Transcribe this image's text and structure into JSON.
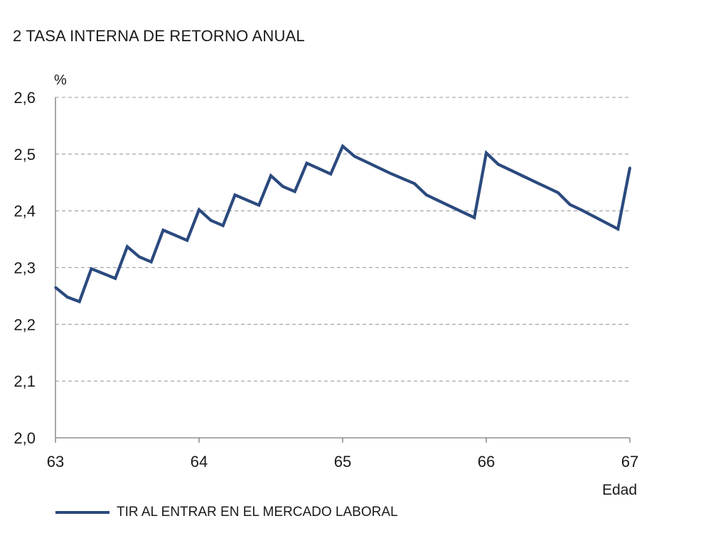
{
  "title": "2  TASA INTERNA DE RETORNO ANUAL",
  "chart_data": {
    "type": "line",
    "ylabel": "%",
    "xlabel": "Edad",
    "xlim": [
      63,
      67
    ],
    "ylim": [
      2.0,
      2.6
    ],
    "grid": true,
    "x_ticks": [
      63,
      64,
      65,
      66,
      67
    ],
    "x_tick_labels": [
      "63",
      "64",
      "65",
      "66",
      "67"
    ],
    "y_ticks": [
      2.0,
      2.1,
      2.2,
      2.3,
      2.4,
      2.5,
      2.6
    ],
    "y_tick_labels": [
      "2,0",
      "2,1",
      "2,2",
      "2,3",
      "2,4",
      "2,5",
      "2,6"
    ],
    "legend_position": "bottom",
    "series": [
      {
        "name": "TIR AL ENTRAR EN EL MERCADO LABORAL",
        "color": "#2b4a7e",
        "x": [
          63.0,
          63.083,
          63.167,
          63.25,
          63.417,
          63.5,
          63.583,
          63.667,
          63.75,
          63.917,
          64.0,
          64.083,
          64.167,
          64.25,
          64.417,
          64.5,
          64.583,
          64.667,
          64.75,
          64.917,
          65.0,
          65.083,
          65.167,
          65.25,
          65.333,
          65.417,
          65.5,
          65.583,
          65.667,
          65.75,
          65.917,
          66.0,
          66.083,
          66.167,
          66.25,
          66.333,
          66.417,
          66.5,
          66.583,
          66.667,
          66.75,
          66.917,
          67.0
        ],
        "y": [
          2.265,
          2.248,
          2.24,
          2.298,
          2.281,
          2.337,
          2.319,
          2.31,
          2.366,
          2.348,
          2.402,
          2.383,
          2.374,
          2.428,
          2.41,
          2.462,
          2.443,
          2.434,
          2.484,
          2.465,
          2.514,
          2.496,
          2.486,
          2.476,
          2.466,
          2.457,
          2.448,
          2.428,
          2.418,
          2.408,
          2.388,
          2.502,
          2.482,
          2.472,
          2.462,
          2.452,
          2.442,
          2.432,
          2.411,
          2.401,
          2.39,
          2.368,
          2.476
        ]
      }
    ]
  }
}
